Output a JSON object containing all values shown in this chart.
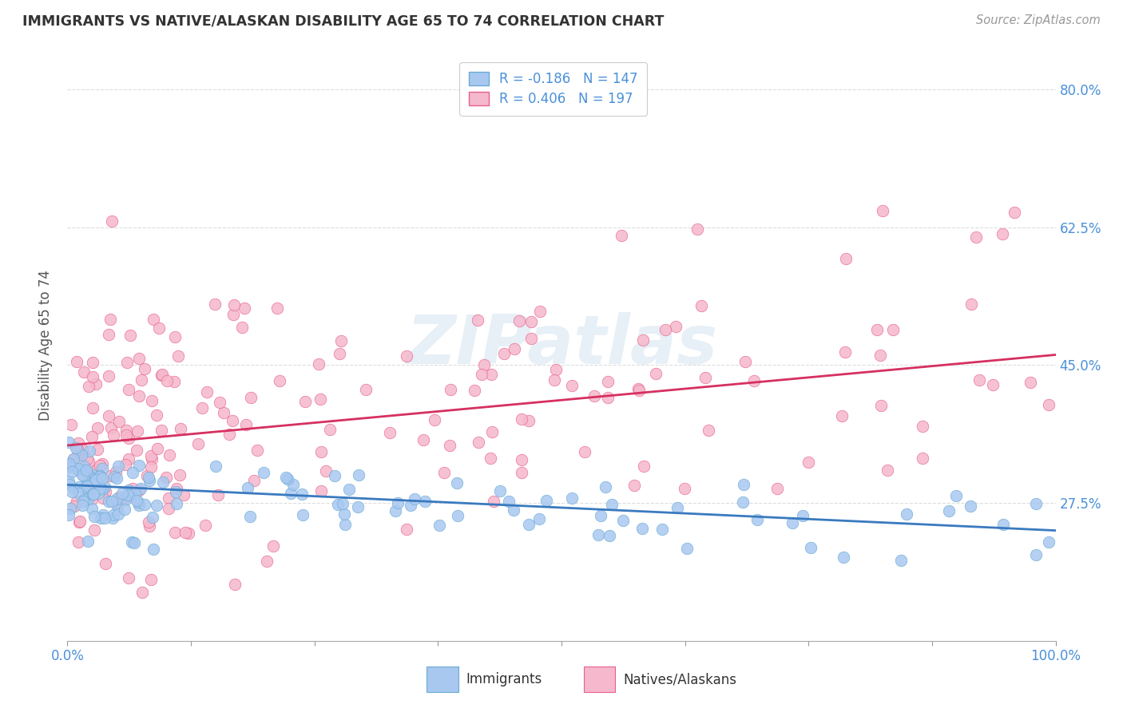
{
  "title": "IMMIGRANTS VS NATIVE/ALASKAN DISABILITY AGE 65 TO 74 CORRELATION CHART",
  "source": "Source: ZipAtlas.com",
  "ylabel": "Disability Age 65 to 74",
  "xlim": [
    0.0,
    1.0
  ],
  "ylim": [
    0.1,
    0.85
  ],
  "yticks": [
    0.275,
    0.45,
    0.625,
    0.8
  ],
  "ytick_labels": [
    "27.5%",
    "45.0%",
    "62.5%",
    "80.0%"
  ],
  "xticks": [
    0.0,
    0.125,
    0.25,
    0.375,
    0.5,
    0.625,
    0.75,
    0.875,
    1.0
  ],
  "xtick_labels_show": [
    "0.0%",
    "100.0%"
  ],
  "immigrants": {
    "color": "#a8c8f0",
    "edge_color": "#6aaad4",
    "line_color": "#3a7abf",
    "R": -0.186,
    "N": 147,
    "imm_intercept": 0.298,
    "imm_slope": -0.058
  },
  "natives": {
    "color": "#f5b8cc",
    "edge_color": "#e8608a",
    "line_color": "#d63060",
    "R": 0.406,
    "N": 197,
    "nat_intercept": 0.348,
    "nat_slope": 0.115
  },
  "watermark": "ZIPatlas",
  "background_color": "#ffffff",
  "grid_color": "#dddddd",
  "title_color": "#333333",
  "axis_label_color": "#555555",
  "tick_label_color": "#4a90d9",
  "legend_text_color": "#4a90d9",
  "legend_label_color": "#333333"
}
